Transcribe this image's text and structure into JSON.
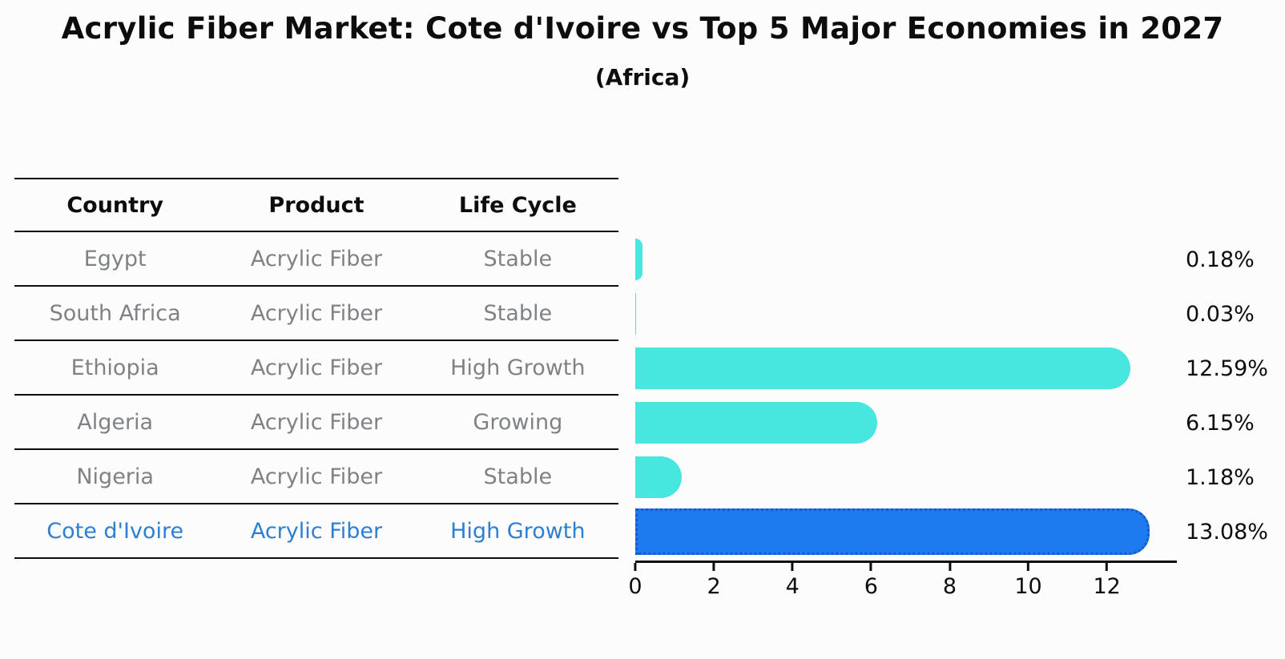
{
  "table": {
    "headers": [
      "Country",
      "Product",
      "Life Cycle"
    ],
    "rows": [
      {
        "country": "Egypt",
        "product": "Acrylic Fiber",
        "life_cycle": "Stable",
        "highlight": false
      },
      {
        "country": "South Africa",
        "product": "Acrylic Fiber",
        "life_cycle": "Stable",
        "highlight": false
      },
      {
        "country": "Ethiopia",
        "product": "Acrylic Fiber",
        "life_cycle": "High Growth",
        "highlight": false
      },
      {
        "country": "Algeria",
        "product": "Acrylic Fiber",
        "life_cycle": "Growing",
        "highlight": false
      },
      {
        "country": "Nigeria",
        "product": "Acrylic Fiber",
        "life_cycle": "Stable",
        "highlight": false
      },
      {
        "country": "Cote d'Ivoire",
        "product": "Acrylic Fiber",
        "life_cycle": "High Growth",
        "highlight": true
      }
    ]
  },
  "chart_data": {
    "type": "bar",
    "orientation": "horizontal",
    "title": "Acrylic Fiber Market: Cote d'Ivoire vs Top 5 Major Economies in 2027",
    "subtitle": "(Africa)",
    "categories": [
      "Egypt",
      "South Africa",
      "Ethiopia",
      "Algeria",
      "Nigeria",
      "Cote d'Ivoire"
    ],
    "values": [
      0.18,
      0.03,
      12.59,
      6.15,
      1.18,
      13.08
    ],
    "value_labels": [
      "0.18%",
      "0.03%",
      "12.59%",
      "6.15%",
      "1.18%",
      "13.08%"
    ],
    "xlabel": "",
    "ylabel": "",
    "xlim": [
      0,
      13.78
    ],
    "x_ticks": [
      0,
      2,
      4,
      6,
      8,
      10,
      12
    ],
    "grid": false,
    "legend": false,
    "bar_color": "#47e6de",
    "highlight_index": 5,
    "highlight_bar_color": "#1e7bef",
    "highlight_border_color": "#155ac8"
  },
  "colors": {
    "text": "#0d0d0d",
    "muted_text": "#7f8285",
    "highlight_text": "#2d7fd3",
    "highlight_border": "#155ac8",
    "table_line": "#0d0d0d",
    "background": "#fcfcfc"
  }
}
